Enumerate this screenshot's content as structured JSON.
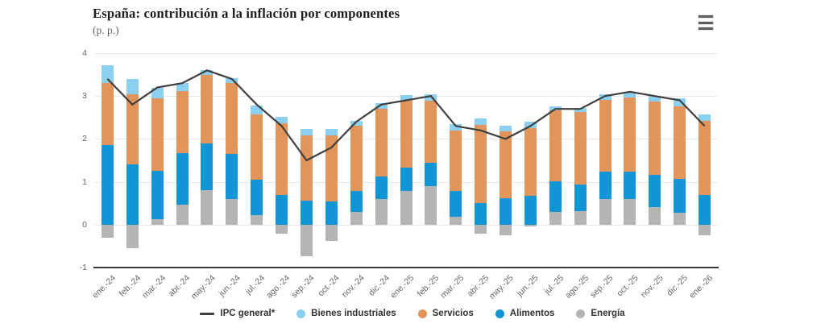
{
  "header": {
    "title": "España: contribución a la inflación por componentes",
    "subtitle": "(p. p.)",
    "menu_icon": "hamburger-menu-icon"
  },
  "colors": {
    "background": "#ffffff",
    "gridline": "#e7e7e7",
    "axis_line": "#3a3a3a",
    "axis_text": "#666666",
    "legend_text": "#333333",
    "title_text": "#1c1c1c"
  },
  "chart_data": {
    "type": "bar",
    "stacked": true,
    "title": "España: contribución a la inflación por componentes",
    "subtitle": "(p. p.)",
    "xlabel": "",
    "ylabel": "",
    "ylim": [
      -1,
      4
    ],
    "yticks": [
      -1,
      0,
      1,
      2,
      3,
      4
    ],
    "grid": true,
    "legend_position": "bottom",
    "categories": [
      "ene.-24",
      "feb.-24",
      "mar.-24",
      "abr.-24",
      "may.-24",
      "jun.-24",
      "jul.-24",
      "ago.-24",
      "sep.-24",
      "oct.-24",
      "nov.-24",
      "dic.-24",
      "ene.-25",
      "feb.-25",
      "mar.-25",
      "abr.-25",
      "may.-25",
      "jun.-25",
      "jul.-25",
      "ago.-25",
      "sep.-25",
      "oct.-25",
      "nov.-25",
      "dic.-25",
      "ene.-26"
    ],
    "stack_order": [
      "Energía",
      "Alimentos",
      "Servicios",
      "Bienes industriales"
    ],
    "legend_order": [
      "IPC general*",
      "Bienes industriales",
      "Servicios",
      "Alimentos",
      "Energía"
    ],
    "line_series": "IPC general*",
    "series": [
      {
        "name": "IPC general*",
        "type": "line",
        "color": "#3f3f3f",
        "values": [
          3.4,
          2.8,
          3.2,
          3.3,
          3.6,
          3.4,
          2.8,
          2.3,
          1.5,
          1.8,
          2.4,
          2.8,
          2.9,
          3.0,
          2.3,
          2.2,
          2.0,
          2.3,
          2.7,
          2.7,
          3.0,
          3.1,
          3.0,
          2.9,
          2.3
        ]
      },
      {
        "name": "Bienes industriales",
        "type": "bar",
        "color": "#8bd0f0",
        "values": [
          0.42,
          0.35,
          0.25,
          0.18,
          0.1,
          0.12,
          0.2,
          0.15,
          0.16,
          0.15,
          0.12,
          0.13,
          0.13,
          0.15,
          0.16,
          0.15,
          0.13,
          0.14,
          0.1,
          0.1,
          0.14,
          0.14,
          0.13,
          0.18,
          0.14
        ]
      },
      {
        "name": "Servicios",
        "type": "bar",
        "color": "#e2955a",
        "values": [
          1.45,
          1.65,
          1.7,
          1.45,
          1.6,
          1.65,
          1.52,
          1.66,
          1.52,
          1.53,
          1.52,
          1.59,
          1.55,
          1.46,
          1.41,
          1.82,
          1.55,
          1.58,
          1.64,
          1.69,
          1.68,
          1.72,
          1.71,
          1.7,
          1.74
        ]
      },
      {
        "name": "Alimentos",
        "type": "bar",
        "color": "#1295d6",
        "values": [
          1.85,
          1.4,
          1.12,
          1.2,
          1.1,
          1.05,
          0.82,
          0.7,
          0.56,
          0.55,
          0.49,
          0.52,
          0.55,
          0.54,
          0.6,
          0.5,
          0.62,
          0.68,
          0.72,
          0.62,
          0.64,
          0.65,
          0.75,
          0.78,
          0.69
        ]
      },
      {
        "name": "Energía",
        "type": "bar",
        "color": "#b4b4b2",
        "values": [
          -0.3,
          -0.55,
          0.13,
          0.47,
          0.8,
          0.6,
          0.23,
          -0.21,
          -0.74,
          -0.38,
          0.3,
          0.6,
          0.79,
          0.9,
          0.18,
          -0.21,
          -0.24,
          -0.04,
          0.3,
          0.31,
          0.59,
          0.59,
          0.41,
          0.28,
          -0.25
        ]
      }
    ]
  }
}
